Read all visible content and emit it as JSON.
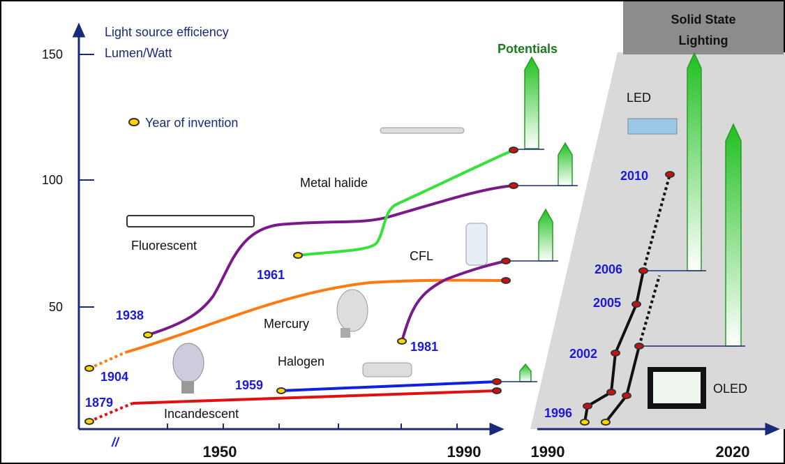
{
  "y_axis": {
    "title": [
      "Light source efficiency",
      "Lumen/Watt"
    ],
    "ticks": [
      "150",
      "100",
      "50"
    ]
  },
  "x_axis_left": {
    "ticks": [
      "1950",
      "1990"
    ],
    "break": "//"
  },
  "x_axis_right": {
    "ticks": [
      "1990",
      "2020"
    ]
  },
  "legend": "Year of invention",
  "header": "Potentials",
  "panel_title": [
    "Solid State",
    "Lighting"
  ],
  "technologies": [
    {
      "name": "Incandescent",
      "year": "1879"
    },
    {
      "name": "Fluorescent",
      "year": "1938"
    },
    {
      "name": "Mercury",
      "year": "1904"
    },
    {
      "name": "Metal halide",
      "year": "1961"
    },
    {
      "name": "CFL",
      "year": "1981"
    },
    {
      "name": "Halogen",
      "year": "1959"
    }
  ],
  "solid_state": {
    "led": {
      "name": "LED",
      "years": [
        "1996",
        "2002",
        "2005",
        "2006",
        "2010"
      ]
    },
    "oled": {
      "name": "OLED"
    }
  }
}
